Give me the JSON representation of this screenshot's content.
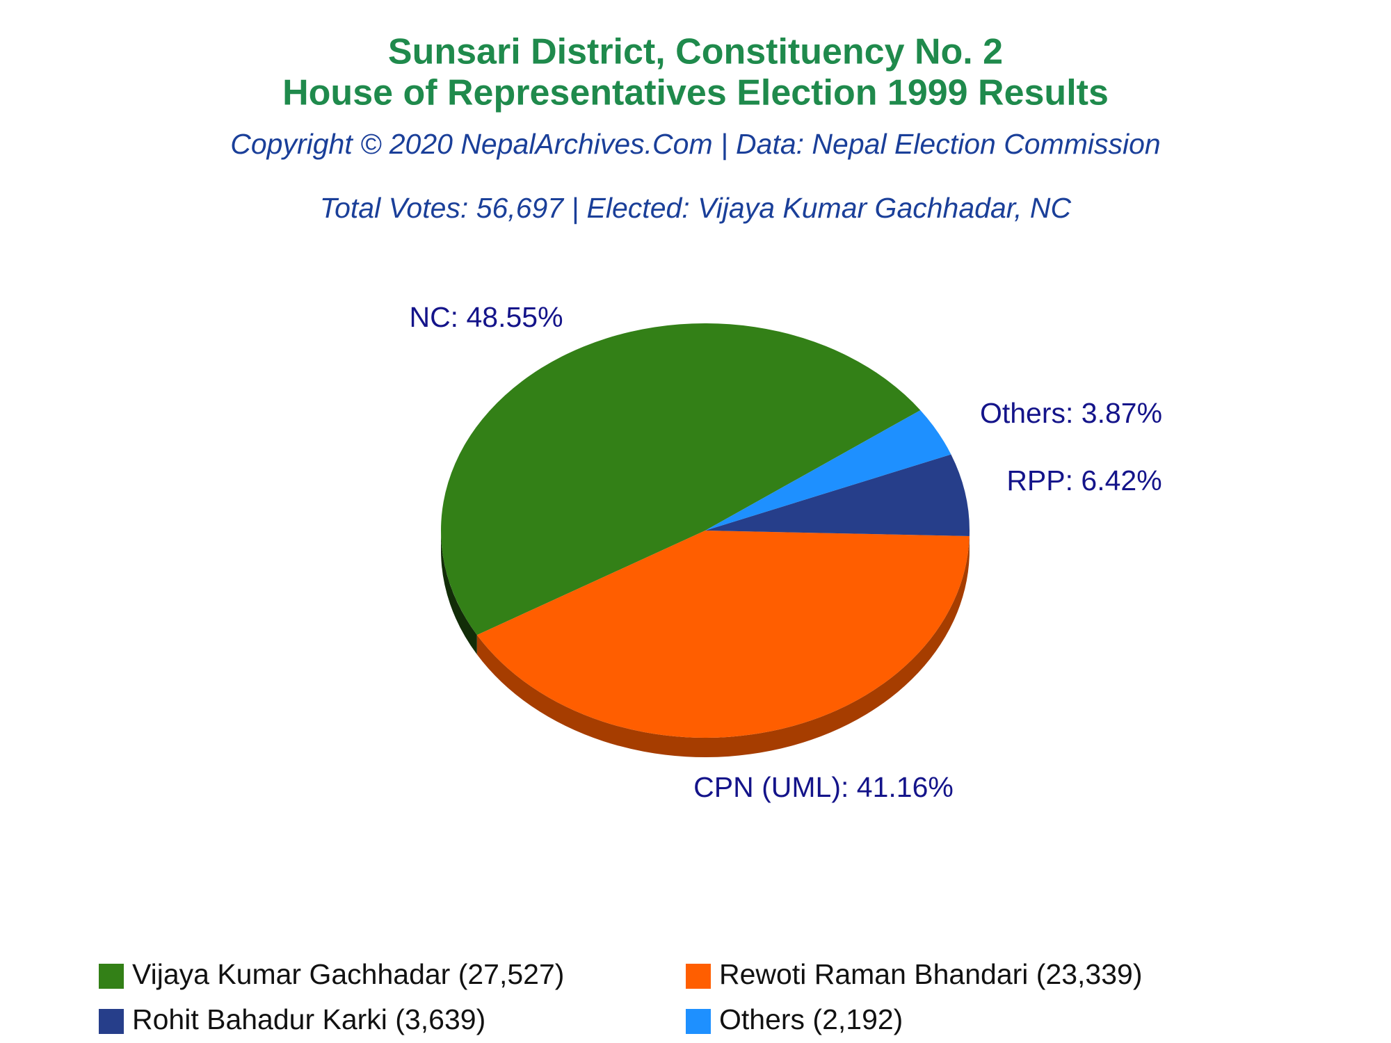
{
  "chart_data": {
    "type": "pie",
    "title": [
      "Sunsari District, Constituency No. 2",
      "House of Representatives Election 1999 Results"
    ],
    "subtitle": "Copyright © 2020 NepalArchives.Com | Data: Nepal Election Commission",
    "summary": "Total Votes: 56,697 | Elected: Vijaya Kumar Gachhadar, NC",
    "categories": [
      "Vijaya Kumar Gachhadar (27,527)",
      "Rewoti Raman Bhandari (23,339)",
      "Rohit Bahadur Karki (3,639)",
      "Others (2,192)"
    ],
    "values": [
      48.55,
      41.16,
      6.42,
      3.87
    ],
    "value_labels": [
      "NC: 48.55%",
      "CPN (UML): 41.16%",
      "RPP: 6.42%",
      "Others: 3.87%"
    ],
    "colors": [
      "#338017",
      "#ff5e00",
      "#263e8a",
      "#1e90ff"
    ]
  }
}
